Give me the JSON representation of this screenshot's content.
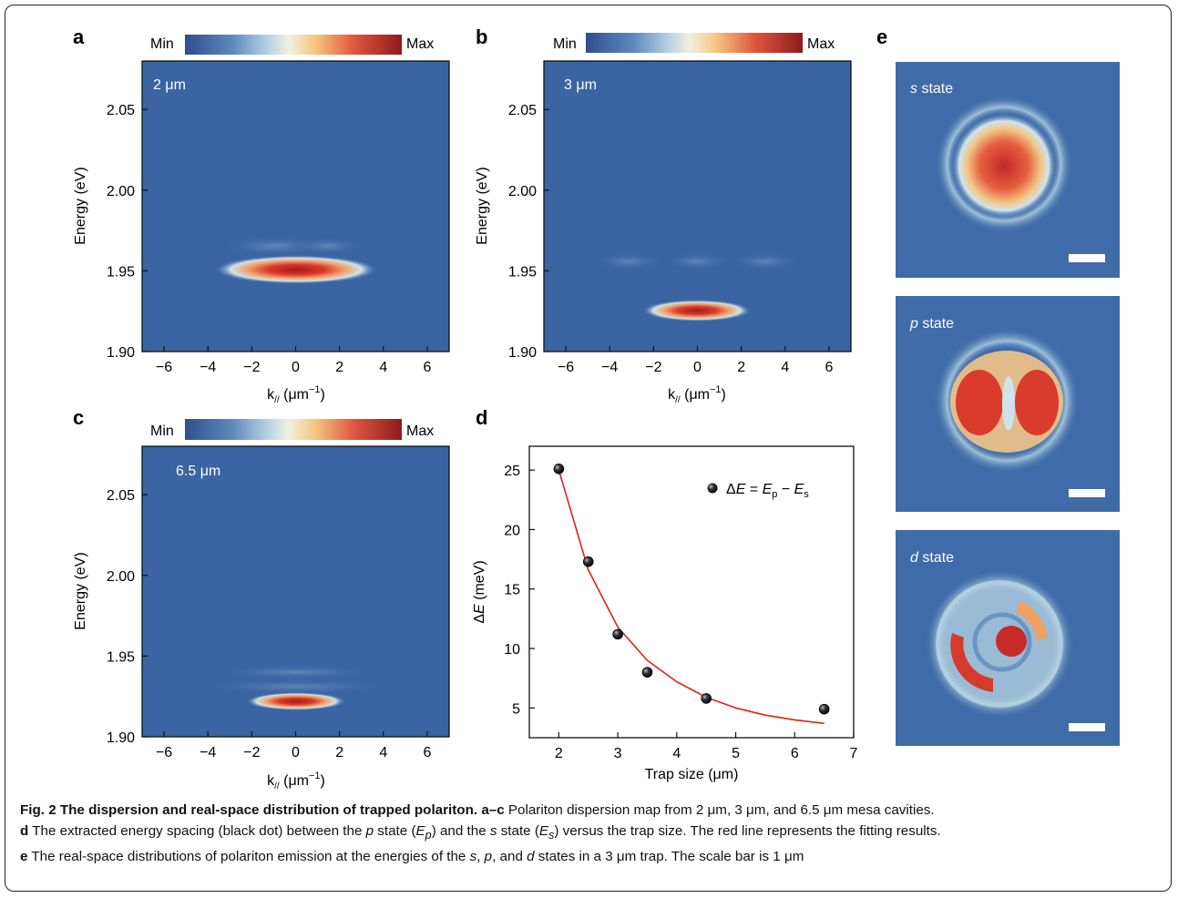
{
  "figure": {
    "panels": {
      "a": {
        "letter": "a",
        "size_label": "2 μm",
        "cbar_min": "Min",
        "cbar_max": "Max",
        "xlabel_main": "k",
        "xlabel_sub": "//",
        "xlabel_unit": " (μm",
        "xlabel_exp": "−1",
        "xlabel_close": ")",
        "ylabel": "Energy (eV)"
      },
      "b": {
        "letter": "b",
        "size_label": "3 μm",
        "cbar_min": "Min",
        "cbar_max": "Max",
        "xlabel_main": "k",
        "xlabel_sub": "//",
        "xlabel_unit": " (μm",
        "xlabel_exp": "−1",
        "xlabel_close": ")",
        "ylabel": "Energy (eV)"
      },
      "c": {
        "letter": "c",
        "size_label": "6.5 μm",
        "cbar_min": "Min",
        "cbar_max": "Max",
        "xlabel_main": "k",
        "xlabel_sub": "//",
        "xlabel_unit": " (μm",
        "xlabel_exp": "−1",
        "xlabel_close": ")",
        "ylabel": "Energy (eV)"
      },
      "d": {
        "letter": "d",
        "xlabel": "Trap size (μm)",
        "ylabel_delta": "Δ",
        "ylabel_E": "E",
        "ylabel_unit": " (meV)",
        "legend": {
          "delta": "Δ",
          "E": "E",
          "eq": " = ",
          "Ep_sub": "p",
          "minus": " − ",
          "Es_sub": "s"
        }
      },
      "e": {
        "letter": "e",
        "states": [
          {
            "letter": "s",
            "word": " state"
          },
          {
            "letter": "p",
            "word": " state"
          },
          {
            "letter": "d",
            "word": " state"
          }
        ]
      }
    },
    "dispersion_axes": {
      "xticks": [
        "−6",
        "−4",
        "−2",
        "0",
        "2",
        "4",
        "6"
      ],
      "yticks": [
        "1.90",
        "1.95",
        "2.00",
        "2.05"
      ]
    },
    "colors": {
      "map_bg": "#3a64a2",
      "line_fit": "#e0201b",
      "point": "#111111"
    }
  },
  "chart_data": {
    "type": "scatter",
    "xlabel": "Trap size (μm)",
    "ylabel": "ΔE (meV)",
    "xlim": [
      1.5,
      7
    ],
    "ylim": [
      2.5,
      27
    ],
    "xticks": [
      "2",
      "3",
      "4",
      "5",
      "6",
      "7"
    ],
    "yticks": [
      "5",
      "10",
      "15",
      "20",
      "25"
    ],
    "series": [
      {
        "name": "ΔE = Ep − Es",
        "kind": "points",
        "x": [
          2,
          2.5,
          3,
          3.5,
          4.5,
          6.5
        ],
        "y": [
          25.1,
          17.3,
          11.2,
          8.0,
          5.8,
          4.9
        ]
      },
      {
        "kind": "fit",
        "x": [
          2,
          2.5,
          3,
          3.5,
          4,
          4.5,
          5,
          5.5,
          6,
          6.5
        ],
        "y": [
          25.0,
          16.6,
          11.8,
          9.0,
          7.2,
          5.9,
          5.0,
          4.4,
          4.0,
          3.7
        ]
      }
    ],
    "grid": false,
    "legend": "top-right"
  },
  "caption": {
    "title": "Fig. 2 The dispersion and real-space distribution of trapped polariton.",
    "a_c_ref": "a",
    "a_c_dash": "–",
    "a_c_ref2": "c",
    "a_c_text": " Polariton dispersion map from 2 μm, 3 μm, and 6.5 μm mesa cavities.",
    "d_ref": "d",
    "d_text1": " The extracted energy spacing (black dot) between the ",
    "p": "p",
    "d_text2": " state (",
    "Ep": "E",
    "Ep_sub": "p",
    "d_text3": ") and the ",
    "s": "s",
    "d_text4": " state (",
    "Es": "E",
    "Es_sub": "s",
    "d_text5": ") versus the trap size. The red line represents the fitting results.",
    "e_ref": "e",
    "e_text1": " The real-space distributions of polariton emission at the energies of the ",
    "e_s": "s",
    "comma1": ", ",
    "e_p": "p",
    "e_and": ", and ",
    "e_d": "d",
    "e_text2": " states in a 3 μm trap. The scale bar is 1 μm"
  }
}
